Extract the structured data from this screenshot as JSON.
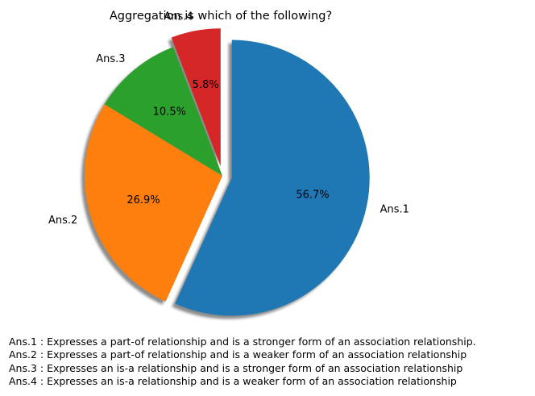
{
  "chart_data": {
    "type": "pie",
    "title": "Aggregation is which of the following?",
    "start_angle_deg": 90,
    "direction": "clockwise",
    "shadow": true,
    "slices": [
      {
        "label": "Ans.1",
        "value": 56.7,
        "pct_label": "56.7%",
        "color": "#1f77b4",
        "exploded": true
      },
      {
        "label": "Ans.2",
        "value": 26.9,
        "pct_label": "26.9%",
        "color": "#ff7f0e",
        "exploded": false
      },
      {
        "label": "Ans.3",
        "value": 10.5,
        "pct_label": "10.5%",
        "color": "#2ca02c",
        "exploded": false
      },
      {
        "label": "Ans.4",
        "value": 5.8,
        "pct_label": "5.8%",
        "color": "#d62728",
        "exploded": true
      }
    ],
    "notes": [
      "Ans.1 : Expresses a part-of relationship and is a stronger form of an association relationship.",
      "Ans.2 : Expresses a part-of relationship and is a weaker form of an association relationship",
      "Ans.3 : Expresses an is-a relationship and is a stronger form of an association relationship",
      "Ans.4 : Expresses an is-a relationship and is a weaker form of an association relationship"
    ]
  }
}
